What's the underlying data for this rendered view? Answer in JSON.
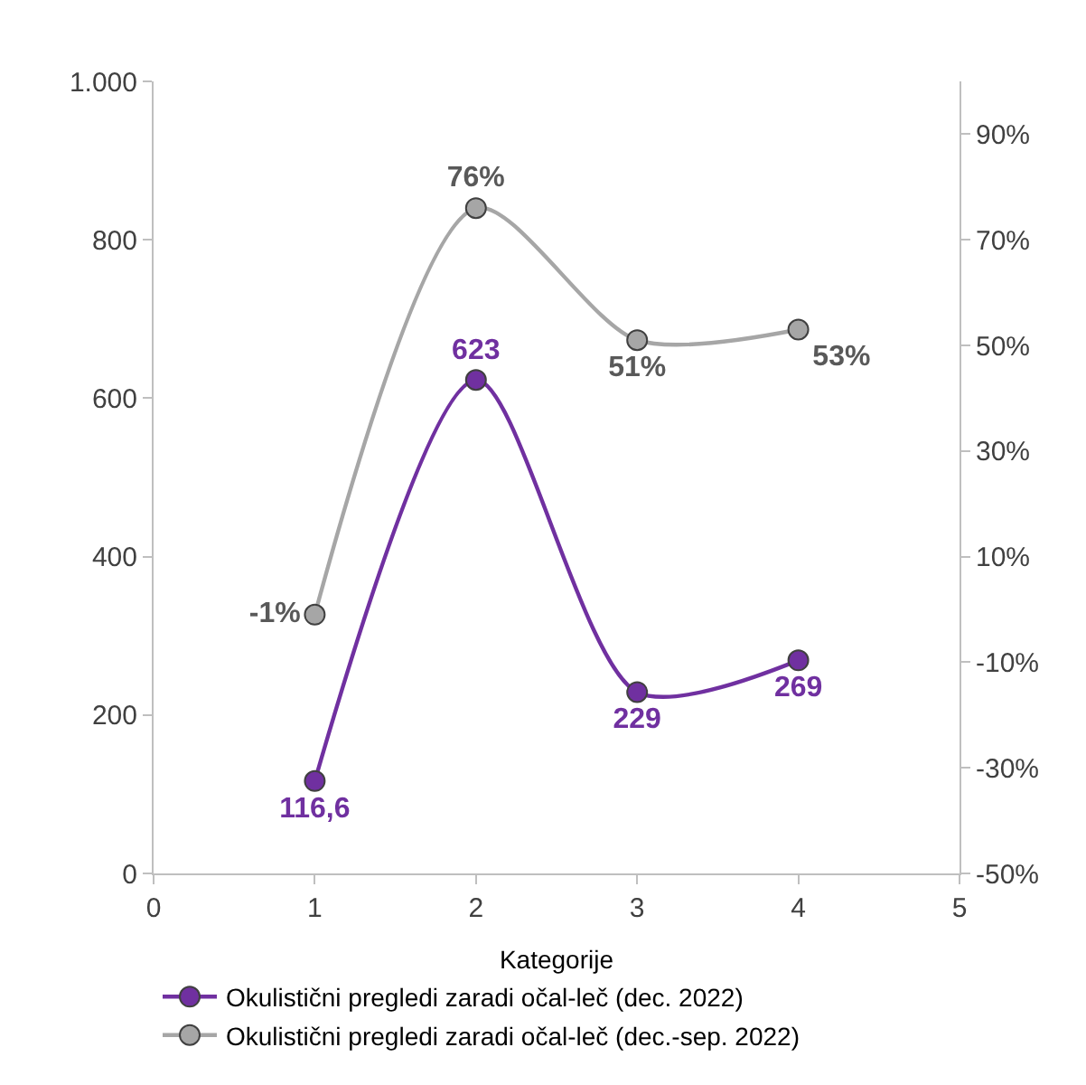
{
  "chart_data": {
    "type": "line",
    "xlabel": "Kategorije",
    "x": [
      1,
      2,
      3,
      4
    ],
    "xlim": [
      0,
      5
    ],
    "xticks": [
      0,
      1,
      2,
      3,
      4,
      5
    ],
    "ylim": [
      0,
      1000
    ],
    "yticks": [
      0,
      200,
      400,
      600,
      800,
      {
        "value": 1000,
        "label": "1.000"
      }
    ],
    "y2lim": [
      -50,
      100
    ],
    "y2ticks": [
      {
        "value": -50,
        "label": "-50%"
      },
      {
        "value": -30,
        "label": "-30%"
      },
      {
        "value": -10,
        "label": "-10%"
      },
      {
        "value": 10,
        "label": "10%"
      },
      {
        "value": 30,
        "label": "30%"
      },
      {
        "value": 50,
        "label": "50%"
      },
      {
        "value": 70,
        "label": "70%"
      },
      {
        "value": 90,
        "label": "90%"
      }
    ],
    "series": [
      {
        "name": "Okulistični pregledi zaradi očal-leč (dec. 2022)",
        "color": "#7030a0",
        "values": [
          116.6,
          623,
          229,
          269
        ],
        "value_labels": [
          "116,6",
          "623",
          "229",
          "269"
        ]
      },
      {
        "name": "Okulistični pregledi zaradi očal-leč (dec.-sep. 2022)",
        "color": "#a6a6a6",
        "axis": "y2",
        "values": [
          -1,
          76,
          51,
          53
        ],
        "value_labels": [
          "-1%",
          "76%",
          "51%",
          "53%"
        ]
      }
    ],
    "marker": "circle",
    "line_style": "solid",
    "legend": "bottom"
  }
}
